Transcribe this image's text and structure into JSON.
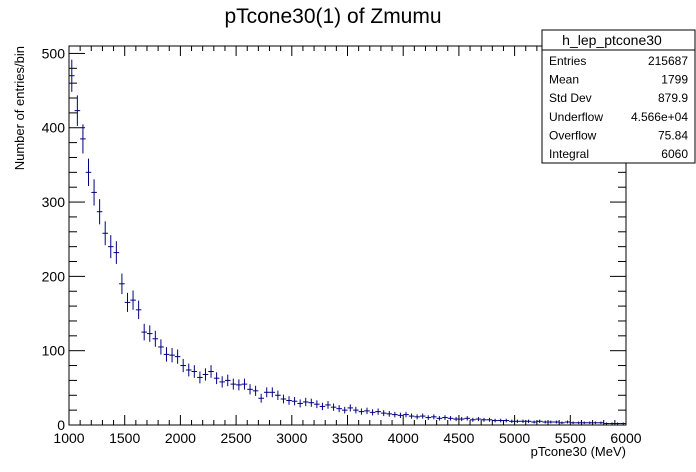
{
  "chart_data": {
    "type": "scatter",
    "title": "pTcone30(1) of Zmumu",
    "xlabel": "pTcone30 (MeV)",
    "ylabel": "Number of entries/bin",
    "xlim": [
      1000,
      6000
    ],
    "ylim": [
      0,
      510
    ],
    "bin_width": 50,
    "x_ticks": [
      1000,
      1500,
      2000,
      2500,
      3000,
      3500,
      4000,
      4500,
      5000,
      5500,
      6000
    ],
    "y_ticks": [
      0,
      100,
      200,
      300,
      400,
      500
    ],
    "x_tick_labels": [
      "1000",
      "1500",
      "2000",
      "2500",
      "3000",
      "3500",
      "4000",
      "4500",
      "5000",
      "5500",
      "6000"
    ],
    "y_tick_labels": [
      "0",
      "100",
      "200",
      "300",
      "400",
      "500"
    ],
    "marker_color": "#000080",
    "series": [
      {
        "x": [
          1025,
          1075,
          1125,
          1175,
          1225,
          1275,
          1325,
          1375,
          1425,
          1475,
          1525,
          1575,
          1625,
          1675,
          1725,
          1775,
          1825,
          1875,
          1925,
          1975,
          2025,
          2075,
          2125,
          2175,
          2225,
          2275,
          2325,
          2375,
          2425,
          2475,
          2525,
          2575,
          2625,
          2675,
          2725,
          2775,
          2825,
          2875,
          2925,
          2975,
          3025,
          3075,
          3125,
          3175,
          3225,
          3275,
          3325,
          3375,
          3425,
          3475,
          3525,
          3575,
          3625,
          3675,
          3725,
          3775,
          3825,
          3875,
          3925,
          3975,
          4025,
          4075,
          4125,
          4175,
          4225,
          4275,
          4325,
          4375,
          4425,
          4475,
          4525,
          4575,
          4625,
          4675,
          4725,
          4775,
          4825,
          4875,
          4925,
          4975,
          5025,
          5075,
          5125,
          5175,
          5225,
          5275,
          5325,
          5375,
          5425,
          5475,
          5525,
          5575,
          5625,
          5675,
          5725,
          5775,
          5825,
          5875,
          5925,
          5975
        ],
        "y": [
          470,
          423,
          385,
          340,
          313,
          287,
          258,
          240,
          232,
          190,
          165,
          168,
          155,
          125,
          123,
          116,
          105,
          95,
          94,
          92,
          80,
          74,
          72,
          64,
          68,
          72,
          63,
          58,
          60,
          55,
          54,
          55,
          48,
          46,
          36,
          44,
          44,
          40,
          35,
          33,
          32,
          29,
          31,
          30,
          28,
          25,
          27,
          24,
          22,
          20,
          23,
          20,
          18,
          19,
          17,
          18,
          16,
          15,
          14,
          13,
          14,
          12,
          11,
          12,
          10,
          11,
          9,
          10,
          9,
          8,
          8,
          9,
          7,
          8,
          7,
          7,
          6,
          6,
          6,
          5,
          5,
          5,
          5,
          4,
          5,
          4,
          4,
          4,
          3,
          4,
          3,
          3,
          3,
          3,
          3,
          3,
          2,
          2,
          2,
          2
        ]
      }
    ]
  },
  "stats_box": {
    "name": "h_lep_ptcone30",
    "rows": [
      {
        "label": "Entries",
        "value": "215687"
      },
      {
        "label": "Mean",
        "value": "1799"
      },
      {
        "label": "Std Dev",
        "value": "879.9"
      },
      {
        "label": "Underflow",
        "value": "4.566e+04"
      },
      {
        "label": "Overflow",
        "value": "75.84"
      },
      {
        "label": "Integral",
        "value": "6060"
      }
    ]
  }
}
